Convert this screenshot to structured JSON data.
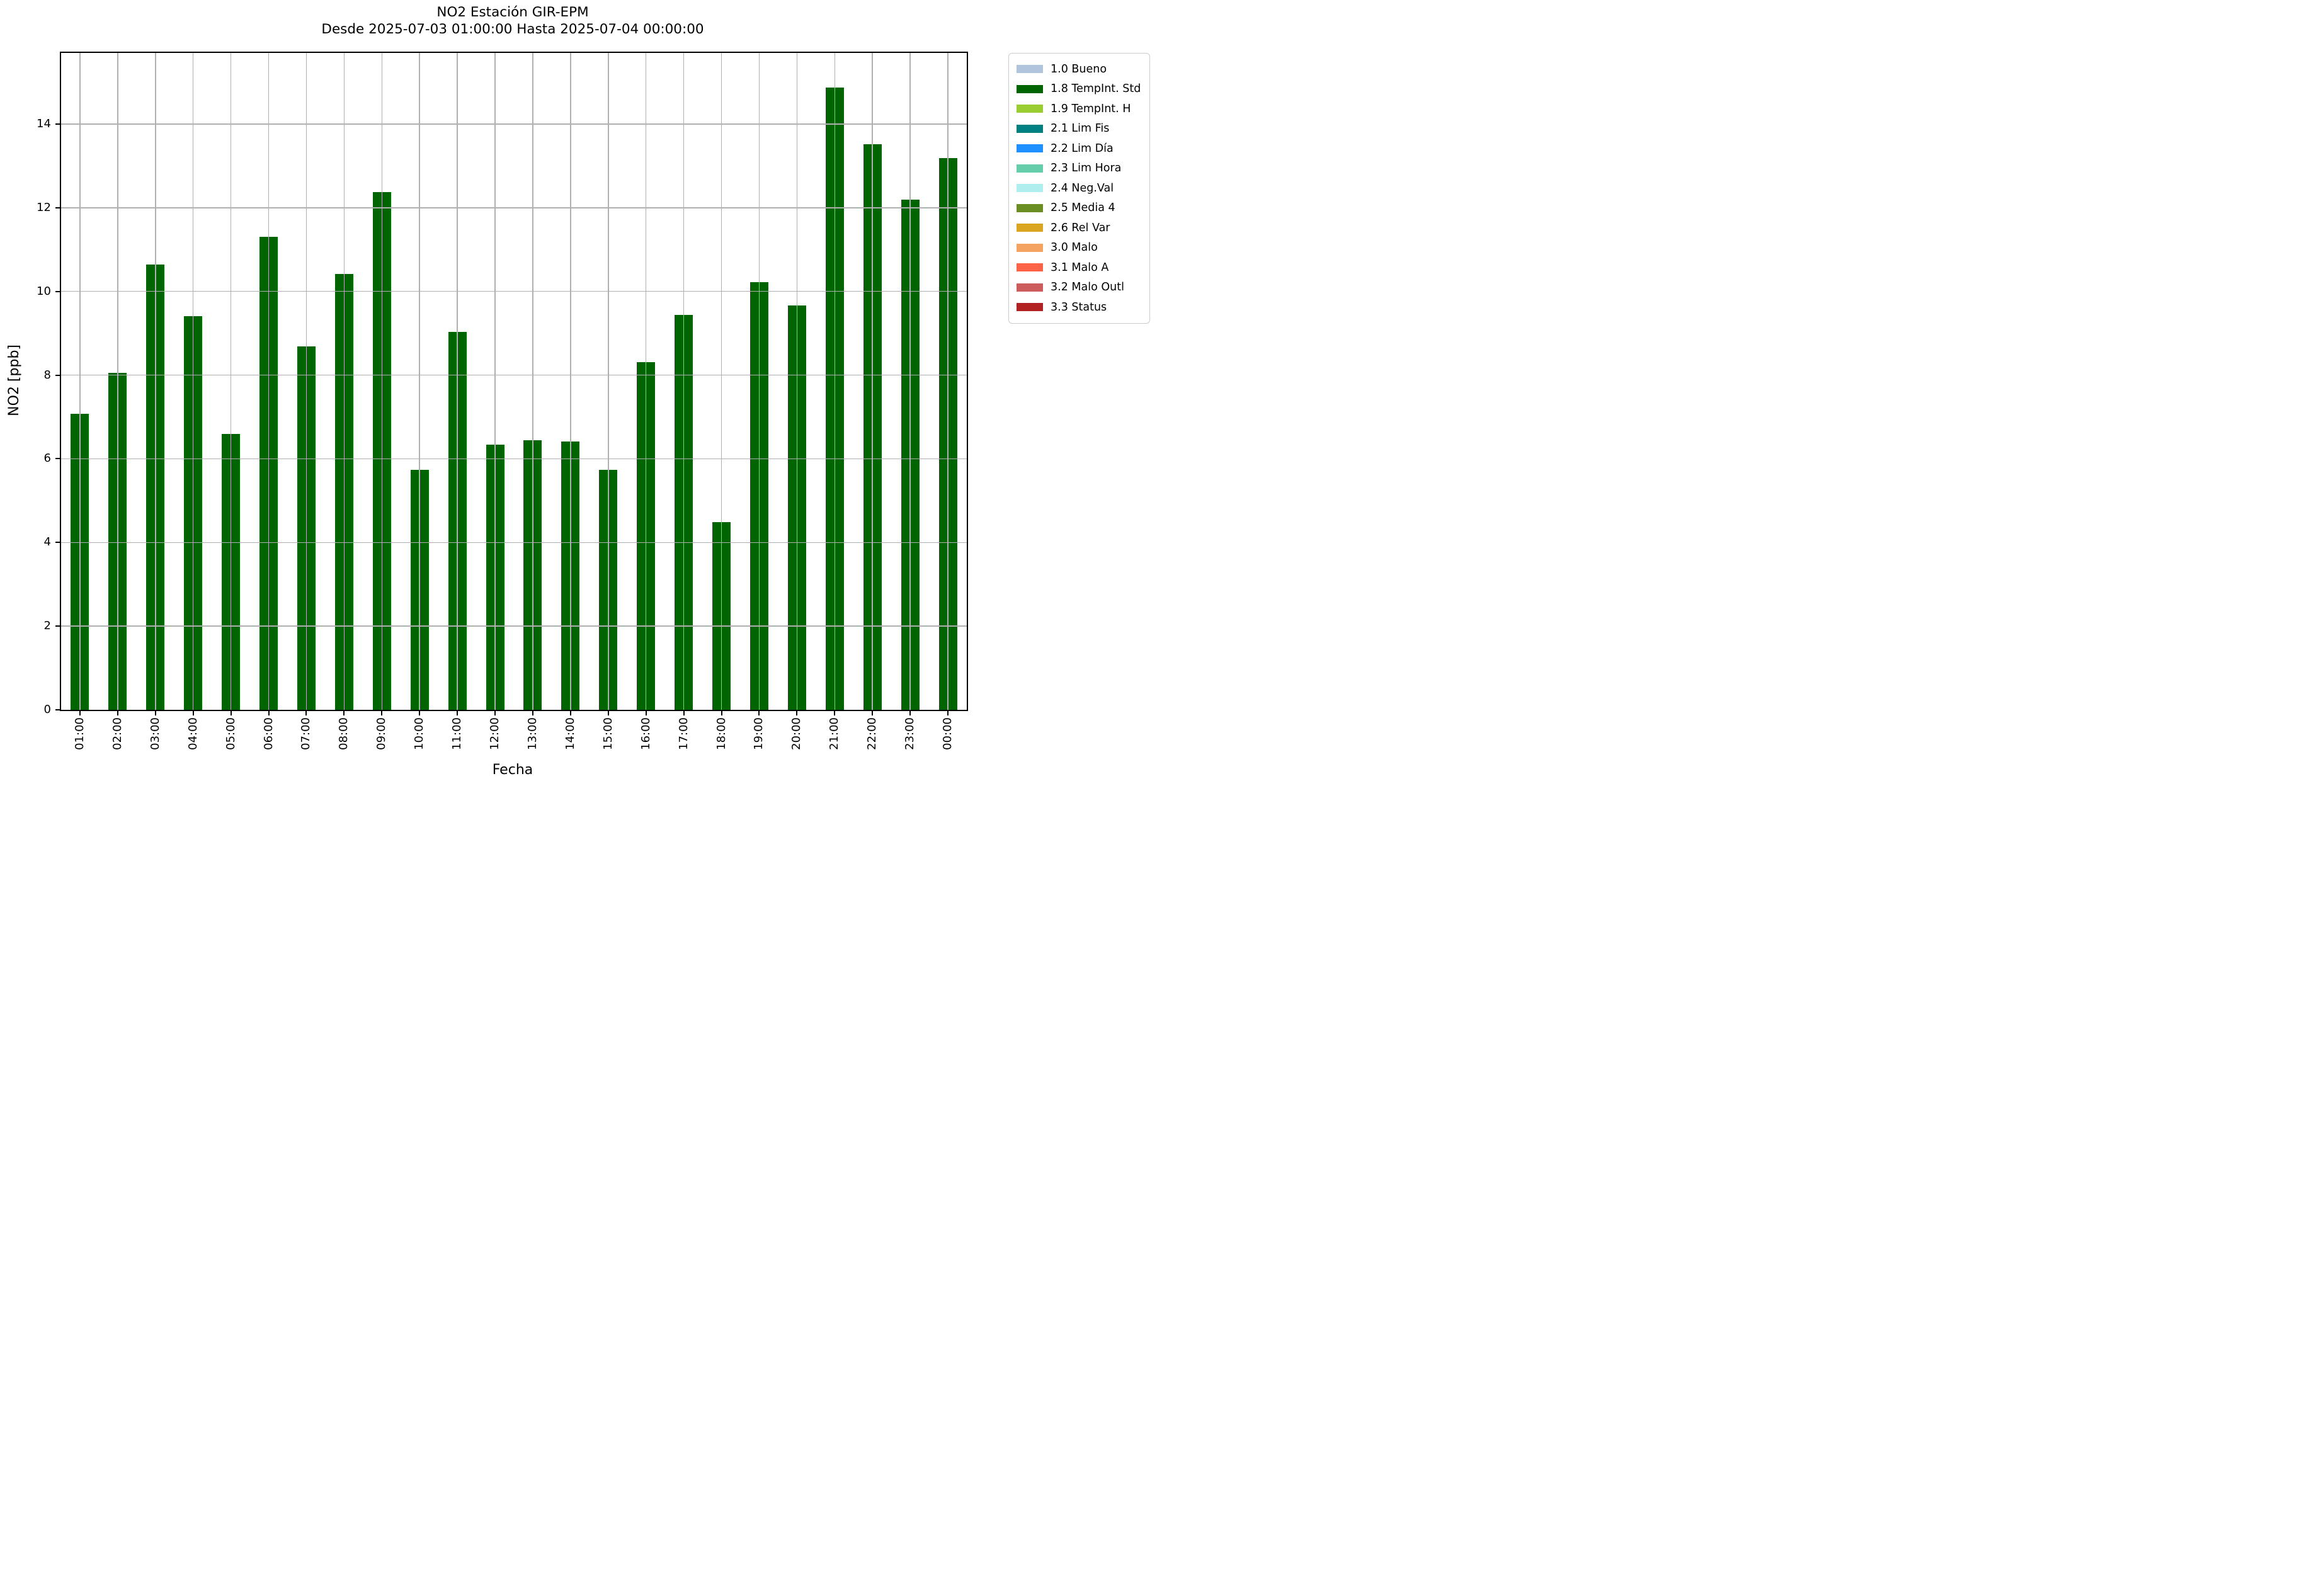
{
  "chart_data": {
    "type": "bar",
    "title_line1": "NO2 Estación GIR-EPM",
    "title_line2": "Desde 2025-07-03 01:00:00 Hasta 2025-07-04 00:00:00",
    "xlabel": "Fecha",
    "ylabel": "NO2 [ppb]",
    "categories": [
      "01:00",
      "02:00",
      "03:00",
      "04:00",
      "05:00",
      "06:00",
      "07:00",
      "08:00",
      "09:00",
      "10:00",
      "11:00",
      "12:00",
      "13:00",
      "14:00",
      "15:00",
      "16:00",
      "17:00",
      "18:00",
      "19:00",
      "20:00",
      "21:00",
      "22:00",
      "23:00",
      "00:00"
    ],
    "values": [
      7.07,
      8.05,
      10.64,
      9.41,
      6.6,
      11.31,
      8.68,
      10.41,
      12.37,
      5.73,
      9.03,
      6.33,
      6.45,
      6.41,
      5.73,
      8.31,
      9.44,
      4.48,
      10.22,
      9.67,
      14.87,
      13.52,
      12.2,
      13.19
    ],
    "series_name": "1.8 TempInt. Std",
    "bar_color": "#006400",
    "ylim": [
      0,
      15.7
    ],
    "yticks": [
      0,
      2,
      4,
      6,
      8,
      10,
      12,
      14
    ],
    "grid": true,
    "grid_color": "#b0b0b0",
    "background": "#ffffff",
    "x_tick_rotation": 90,
    "legend": {
      "position": "outside-upper-right",
      "items": [
        {
          "label": "1.0 Bueno",
          "color": "#b0c4de"
        },
        {
          "label": "1.8 TempInt. Std",
          "color": "#006400"
        },
        {
          "label": "1.9 TempInt. H",
          "color": "#9acd32"
        },
        {
          "label": "2.1 Lim Fis",
          "color": "#008080"
        },
        {
          "label": "2.2 Lim Día",
          "color": "#1e90ff"
        },
        {
          "label": "2.3 Lim Hora",
          "color": "#66cdaa"
        },
        {
          "label": "2.4 Neg.Val",
          "color": "#afeeee"
        },
        {
          "label": "2.5 Media 4",
          "color": "#6b8e23"
        },
        {
          "label": "2.6 Rel Var",
          "color": "#daa520"
        },
        {
          "label": "3.0 Malo",
          "color": "#f4a460"
        },
        {
          "label": "3.1 Malo A",
          "color": "#ff6347"
        },
        {
          "label": "3.2 Malo Outl",
          "color": "#cd5c5c"
        },
        {
          "label": "3.3 Status",
          "color": "#b22222"
        }
      ]
    }
  }
}
